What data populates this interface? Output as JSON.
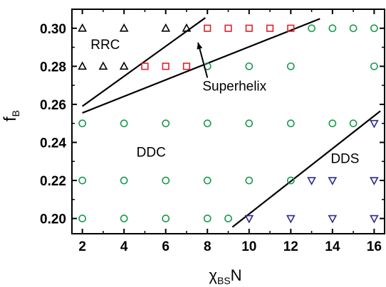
{
  "chart_data": {
    "type": "scatter",
    "xlabel": "χ",
    "xlabel_sub": "BS",
    "xlabel_suffix": "N",
    "ylabel": "f",
    "ylabel_sub": "B",
    "xlim": [
      1.5,
      16.5
    ],
    "ylim": [
      0.192,
      0.31
    ],
    "xticks": [
      "2",
      "4",
      "6",
      "8",
      "10",
      "12",
      "14",
      "16"
    ],
    "xtick_values": [
      2,
      4,
      6,
      8,
      10,
      12,
      14,
      16
    ],
    "yticks": [
      "0.20",
      "0.22",
      "0.24",
      "0.26",
      "0.28",
      "0.30"
    ],
    "ytick_values": [
      0.2,
      0.22,
      0.24,
      0.26,
      0.28,
      0.3
    ],
    "colors": {
      "RRC": "#000000",
      "Superhelix": "#e0202a",
      "DDC": "#1a9a50",
      "DDS": "#2c2a8a",
      "boundary": "#000000"
    },
    "series": [
      {
        "name": "RRC",
        "marker": "triangle-up",
        "points": [
          [
            2,
            0.3
          ],
          [
            4,
            0.3
          ],
          [
            6,
            0.3
          ],
          [
            7,
            0.3
          ],
          [
            2,
            0.28
          ],
          [
            3,
            0.28
          ],
          [
            4,
            0.28
          ]
        ]
      },
      {
        "name": "Superhelix",
        "marker": "square",
        "points": [
          [
            8,
            0.3
          ],
          [
            9,
            0.3
          ],
          [
            10,
            0.3
          ],
          [
            11,
            0.3
          ],
          [
            12,
            0.3
          ],
          [
            5,
            0.28
          ],
          [
            6,
            0.28
          ],
          [
            7,
            0.28
          ]
        ]
      },
      {
        "name": "DDC",
        "marker": "circle",
        "points": [
          [
            13,
            0.3
          ],
          [
            14,
            0.3
          ],
          [
            15,
            0.3
          ],
          [
            16,
            0.3
          ],
          [
            8,
            0.28
          ],
          [
            10,
            0.28
          ],
          [
            12,
            0.28
          ],
          [
            16,
            0.28
          ],
          [
            2,
            0.25
          ],
          [
            4,
            0.25
          ],
          [
            6,
            0.25
          ],
          [
            8,
            0.25
          ],
          [
            10,
            0.25
          ],
          [
            12,
            0.25
          ],
          [
            14,
            0.25
          ],
          [
            15,
            0.25
          ],
          [
            2,
            0.22
          ],
          [
            4,
            0.22
          ],
          [
            6,
            0.22
          ],
          [
            8,
            0.22
          ],
          [
            10,
            0.22
          ],
          [
            12,
            0.22
          ],
          [
            2,
            0.2
          ],
          [
            4,
            0.2
          ],
          [
            6,
            0.2
          ],
          [
            8,
            0.2
          ],
          [
            9,
            0.2
          ]
        ]
      },
      {
        "name": "DDS",
        "marker": "triangle-down",
        "points": [
          [
            16,
            0.25
          ],
          [
            13,
            0.22
          ],
          [
            14,
            0.22
          ],
          [
            16,
            0.22
          ],
          [
            10,
            0.2
          ],
          [
            12,
            0.2
          ],
          [
            14,
            0.2
          ],
          [
            16,
            0.2
          ]
        ]
      }
    ],
    "boundaries": [
      {
        "from": [
          2,
          0.259
        ],
        "to": [
          7.9,
          0.3055
        ]
      },
      {
        "from": [
          2,
          0.2555
        ],
        "to": [
          13.4,
          0.305
        ]
      },
      {
        "from": [
          9.2,
          0.1955
        ],
        "to": [
          16.3,
          0.2565
        ]
      }
    ],
    "region_labels": [
      {
        "text": "RRC",
        "x": 3.1,
        "y": 0.289
      },
      {
        "text": "Superhelix",
        "x": 9.3,
        "y": 0.2672
      },
      {
        "text": "DDC",
        "x": 5.3,
        "y": 0.2325
      },
      {
        "text": "DDS",
        "x": 14.6,
        "y": 0.2292
      }
    ],
    "annotations": [
      {
        "type": "arrow",
        "from": [
          8.0,
          0.274
        ],
        "to": [
          7.55,
          0.2925
        ]
      }
    ]
  }
}
